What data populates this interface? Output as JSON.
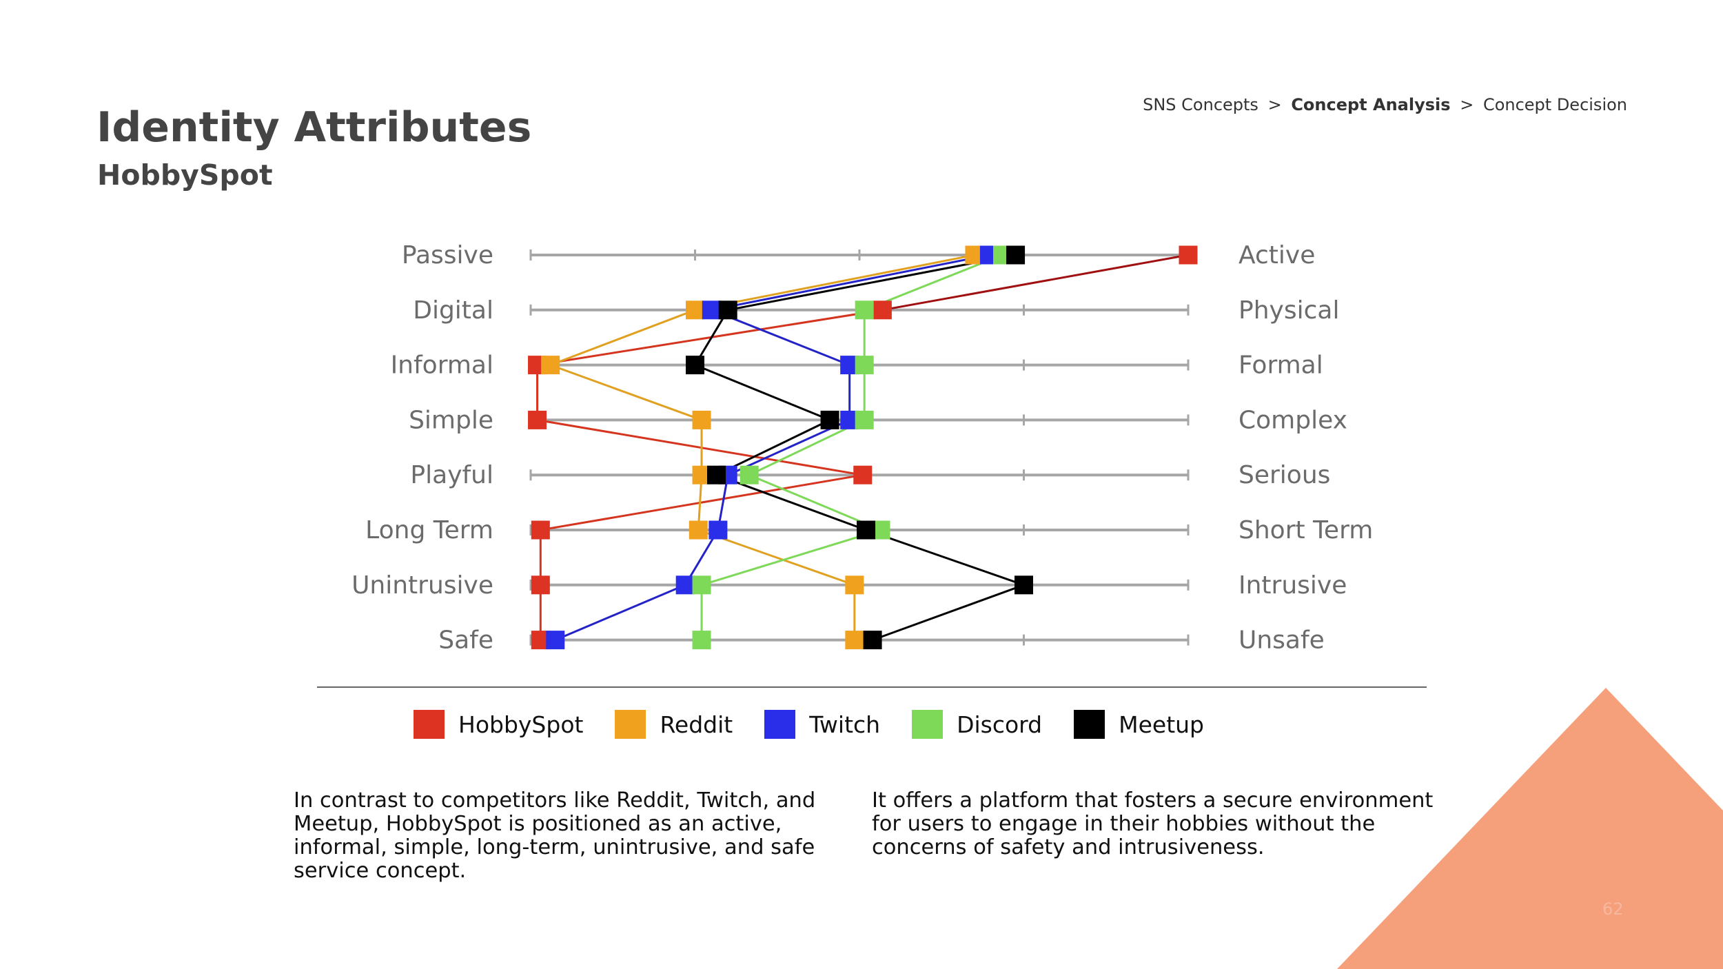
{
  "breadcrumb": {
    "items": [
      "SNS Concepts",
      "Concept Analysis",
      "Concept Decision"
    ],
    "separator": ">",
    "active_index": 1
  },
  "header": {
    "title": "Identity Attributes",
    "subtitle": "HobbySpot"
  },
  "chart_data": {
    "type": "line",
    "scale_min": 1,
    "scale_max": 5,
    "ticks": [
      1,
      2,
      3,
      4,
      5
    ],
    "rows": [
      {
        "left": "Passive",
        "right": "Active"
      },
      {
        "left": "Digital",
        "right": "Physical"
      },
      {
        "left": "Informal",
        "right": "Formal"
      },
      {
        "left": "Simple",
        "right": "Complex"
      },
      {
        "left": "Playful",
        "right": "Serious"
      },
      {
        "left": "Long Term",
        "right": "Short Term"
      },
      {
        "left": "Unintrusive",
        "right": "Intrusive"
      },
      {
        "left": "Safe",
        "right": "Unsafe"
      }
    ],
    "series": [
      {
        "name": "HobbySpot",
        "color": "#dc3322",
        "line_color": "#d5351f",
        "first_line_color": "#a01010",
        "values": [
          5.0,
          3.14,
          1.04,
          1.04,
          3.02,
          1.06,
          1.06,
          1.06
        ]
      },
      {
        "name": "Reddit",
        "color": "#f0a21e",
        "line_color": "#e0a020",
        "values": [
          3.7,
          2.0,
          1.12,
          2.04,
          2.04,
          2.02,
          2.97,
          2.97
        ]
      },
      {
        "name": "Twitch",
        "color": "#2a2ee8",
        "line_color": "#2323c8",
        "values": [
          3.79,
          2.1,
          2.94,
          2.94,
          2.2,
          2.14,
          1.94,
          1.15
        ]
      },
      {
        "name": "Discord",
        "color": "#7dd957",
        "line_color": "#7dd957",
        "values": [
          3.87,
          3.03,
          3.03,
          3.03,
          2.33,
          3.13,
          2.04,
          2.04
        ]
      },
      {
        "name": "Meetup",
        "color": "#000000",
        "line_color": "#000000",
        "values": [
          3.95,
          2.2,
          2.0,
          2.82,
          2.13,
          3.04,
          4.0,
          3.08
        ]
      }
    ]
  },
  "legend": [
    {
      "name": "HobbySpot",
      "color": "#dc3322"
    },
    {
      "name": "Reddit",
      "color": "#f0a21e"
    },
    {
      "name": "Twitch",
      "color": "#2a2ee8"
    },
    {
      "name": "Discord",
      "color": "#7dd957"
    },
    {
      "name": "Meetup",
      "color": "#000000"
    }
  ],
  "body": {
    "left_paragraph": "In contrast to competitors like Reddit, Twitch, and Meetup, HobbySpot is positioned as an active, informal, simple, long-term, unintrusive, and safe service concept.",
    "right_paragraph": "It offers a platform that fosters a secure environment for users to engage in their hobbies without the concerns of safety and intrusiveness."
  },
  "page_number": "62",
  "colors": {
    "accent_shape": "#f5a07a",
    "axis_line": "#a6a6a6",
    "row_label": "#6b6b6b"
  }
}
